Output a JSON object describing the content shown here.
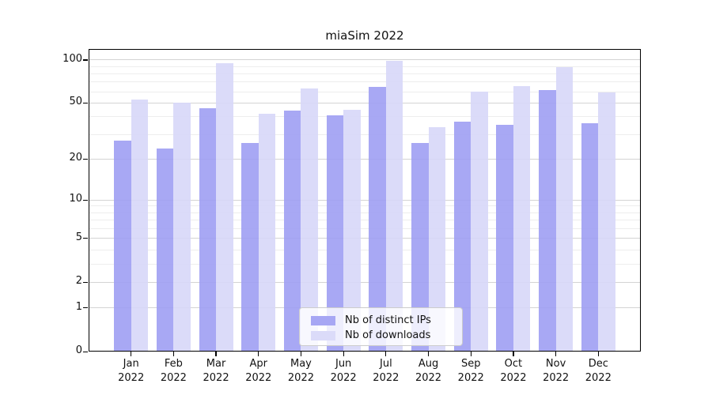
{
  "title": "miaSim 2022",
  "colors": {
    "ips_bar": "rgba(158,158,243,0.9)",
    "downloads_bar": "rgba(215,215,248,0.9)",
    "ips_swatch": "#a7a7f4",
    "downloads_swatch": "#dbdbf9",
    "grid_major": "#d4d4d4",
    "grid_minor": "#ededed",
    "spine": "#000000"
  },
  "chart_data": {
    "type": "bar",
    "title": "miaSim 2022",
    "categories": [
      "Jan 2022",
      "Feb 2022",
      "Mar 2022",
      "Apr 2022",
      "May 2022",
      "Jun 2022",
      "Jul 2022",
      "Aug 2022",
      "Sep 2022",
      "Oct 2022",
      "Nov 2022",
      "Dec 2022"
    ],
    "series": [
      {
        "name": "Nb of distinct IPs",
        "values": [
          27,
          24,
          46,
          26,
          44,
          41,
          65,
          26,
          37,
          35,
          62,
          36
        ]
      },
      {
        "name": "Nb of downloads",
        "values": [
          53,
          50,
          95,
          42,
          63,
          45,
          98,
          34,
          60,
          66,
          89,
          59
        ]
      }
    ],
    "xlabel": "",
    "ylabel": "",
    "yscale": "log1p",
    "yticks": [
      100,
      50,
      20,
      10,
      5,
      2,
      1,
      0
    ],
    "minor_yticks": [
      3,
      4,
      6,
      7,
      8,
      9,
      30,
      40,
      60,
      70,
      80,
      90
    ],
    "ylim": [
      0,
      119
    ],
    "grid": true,
    "legend_position": "lower-center"
  },
  "legend": {
    "items": [
      {
        "label": "Nb of distinct IPs"
      },
      {
        "label": "Nb of downloads"
      }
    ]
  }
}
